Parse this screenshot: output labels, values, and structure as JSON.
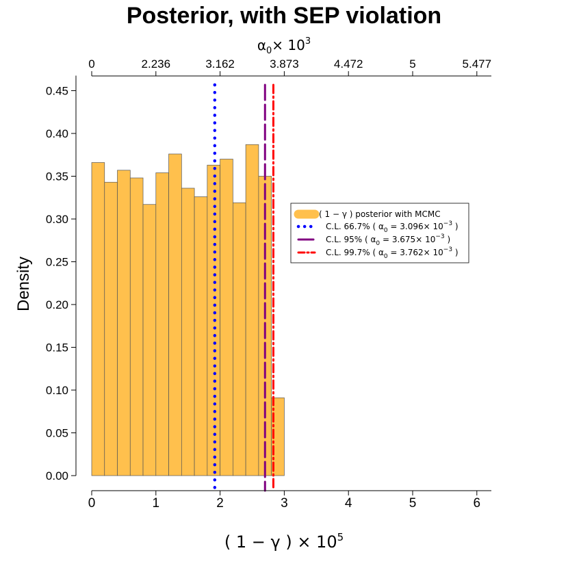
{
  "chart_data": {
    "type": "bar",
    "title": "Posterior, with SEP violation",
    "xlabel": "( 1 − γ ) × 10",
    "xlabel_exp": "5",
    "ylabel": "Density",
    "top_axis_label": "α",
    "top_axis_label_sub": "0",
    "top_axis_label_rest": "× 10",
    "top_axis_label_exp": "3",
    "xlim": [
      0,
      6.25
    ],
    "ylim": [
      0,
      0.47
    ],
    "x_ticks": [
      0,
      1,
      2,
      3,
      4,
      5,
      6
    ],
    "y_ticks": [
      "0.00",
      "0.05",
      "0.10",
      "0.15",
      "0.20",
      "0.25",
      "0.30",
      "0.35",
      "0.40",
      "0.45"
    ],
    "top_ticks": [
      {
        "x": 0,
        "label": "0"
      },
      {
        "x": 1,
        "label": "2.236"
      },
      {
        "x": 2,
        "label": "3.162"
      },
      {
        "x": 3,
        "label": "3.873"
      },
      {
        "x": 4,
        "label": "4.472"
      },
      {
        "x": 5,
        "label": "5"
      },
      {
        "x": 6,
        "label": "5.477"
      }
    ],
    "bin_width": 0.2,
    "bins": [
      {
        "x0": 0.0,
        "value": 0.366
      },
      {
        "x0": 0.2,
        "value": 0.343
      },
      {
        "x0": 0.4,
        "value": 0.357
      },
      {
        "x0": 0.6,
        "value": 0.348
      },
      {
        "x0": 0.8,
        "value": 0.317
      },
      {
        "x0": 1.0,
        "value": 0.354
      },
      {
        "x0": 1.2,
        "value": 0.376
      },
      {
        "x0": 1.4,
        "value": 0.336
      },
      {
        "x0": 1.6,
        "value": 0.326
      },
      {
        "x0": 1.8,
        "value": 0.363
      },
      {
        "x0": 2.0,
        "value": 0.37
      },
      {
        "x0": 2.2,
        "value": 0.319
      },
      {
        "x0": 2.4,
        "value": 0.387
      },
      {
        "x0": 2.6,
        "value": 0.35
      },
      {
        "x0": 2.8,
        "value": 0.091
      }
    ],
    "vlines": [
      {
        "x": 1.917,
        "name": "C.L. 66.7%",
        "alpha": "3.096",
        "color": "#0000ff",
        "style": "dotted"
      },
      {
        "x": 2.7,
        "name": "C.L. 95%",
        "alpha": "3.675",
        "color": "#800080",
        "style": "dashed"
      },
      {
        "x": 2.83,
        "name": "C.L. 99.7%",
        "alpha": "3.762",
        "color": "#ff0000",
        "style": "dotdash"
      }
    ],
    "bar_color": "#ffc04d",
    "legend": {
      "placement": "right-middle",
      "entries": [
        {
          "key": "hist",
          "text": "( 1 − γ ) posterior with MCMC"
        },
        {
          "key": "cl1",
          "prefix": "C.L. 66.7% ( ",
          "value": "3.096",
          "suffix": " )"
        },
        {
          "key": "cl2",
          "prefix": "C.L. 95% ( ",
          "value": "3.675",
          "suffix": " )"
        },
        {
          "key": "cl3",
          "prefix": "C.L. 99.7% ( ",
          "value": "3.762",
          "suffix": " )"
        }
      ],
      "alpha_symbol": "α",
      "alpha_sub": "0",
      "times_ten": " = ",
      "times_ten_rest": "× 10",
      "exp": "−3"
    }
  }
}
